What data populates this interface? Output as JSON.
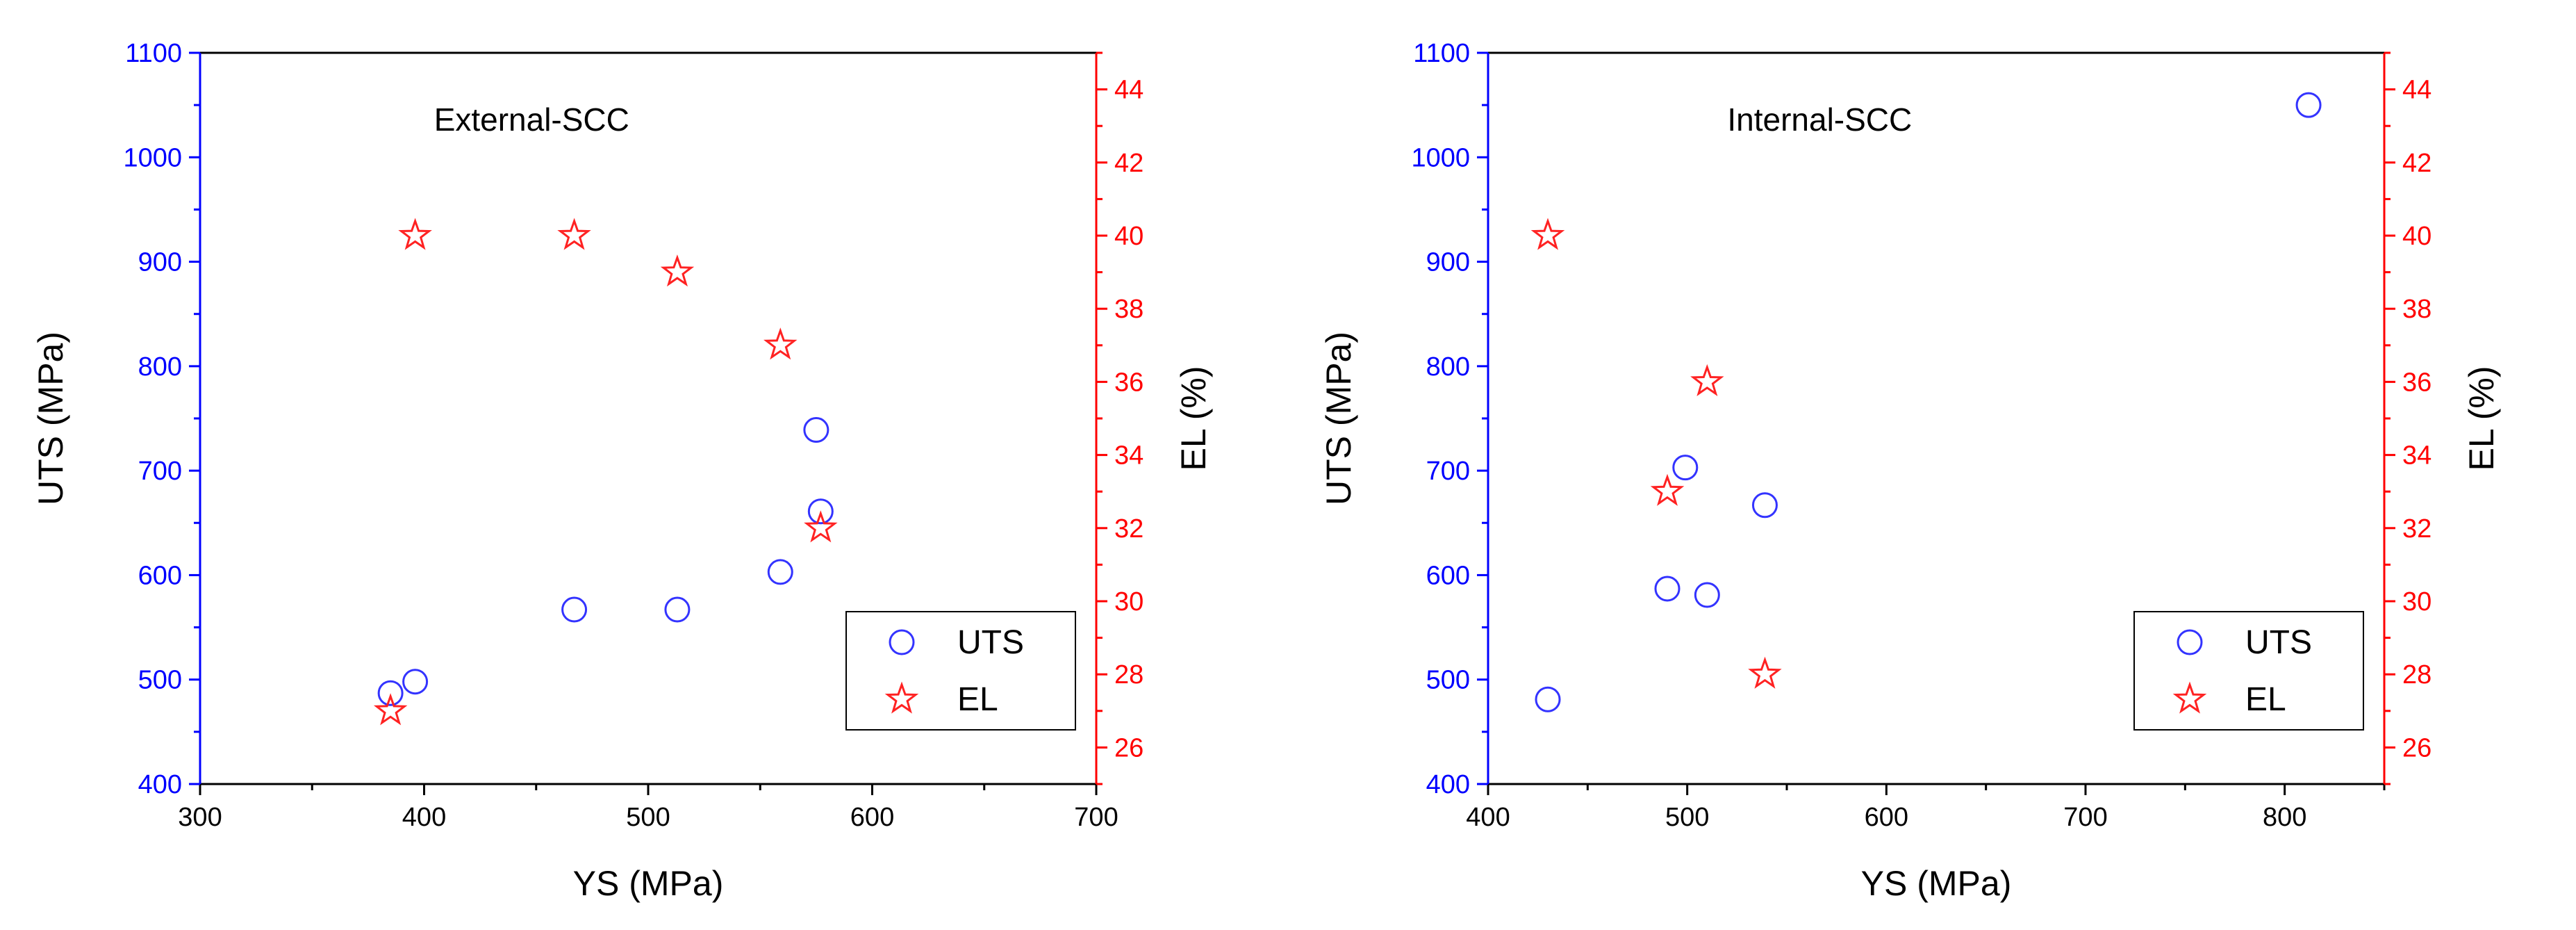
{
  "chart_data": [
    {
      "type": "scatter",
      "title": "External-SCC",
      "xlabel": "YS (MPa)",
      "ylabel_left": "UTS (MPa)",
      "ylabel_right": "EL (%)",
      "xlim": [
        300,
        700
      ],
      "ylim_left": [
        400,
        1100
      ],
      "ylim_right": [
        25,
        45
      ],
      "x_ticks": [
        "300",
        "400",
        "500",
        "600",
        "700"
      ],
      "y_left_ticks": [
        "400",
        "500",
        "600",
        "700",
        "800",
        "900",
        "1000",
        "1100"
      ],
      "y_right_ticks": [
        "26",
        "28",
        "30",
        "32",
        "34",
        "36",
        "38",
        "40",
        "42",
        "44"
      ],
      "legend_position": "bottom-right",
      "series": [
        {
          "name": "UTS",
          "axis": "left",
          "marker": "circle",
          "color": "#3333ff",
          "x": [
            385,
            396,
            467,
            513,
            559,
            575,
            577
          ],
          "y": [
            487,
            498,
            567,
            567,
            603,
            739,
            661
          ]
        },
        {
          "name": "EL",
          "axis": "right",
          "marker": "star",
          "color": "#ff2222",
          "x": [
            385,
            396,
            467,
            513,
            559,
            577
          ],
          "y": [
            27,
            40,
            40,
            39,
            37,
            32
          ]
        }
      ]
    },
    {
      "type": "scatter",
      "title": "Internal-SCC",
      "xlabel": "YS (MPa)",
      "ylabel_left": "UTS (MPa)",
      "ylabel_right": "EL (%)",
      "xlim": [
        400,
        850
      ],
      "ylim_left": [
        400,
        1100
      ],
      "ylim_right": [
        25,
        45
      ],
      "x_ticks": [
        "400",
        "500",
        "600",
        "700",
        "800"
      ],
      "y_left_ticks": [
        "400",
        "500",
        "600",
        "700",
        "800",
        "900",
        "1000",
        "1100"
      ],
      "y_right_ticks": [
        "26",
        "28",
        "30",
        "32",
        "34",
        "36",
        "38",
        "40",
        "42",
        "44"
      ],
      "legend_position": "bottom-right",
      "series": [
        {
          "name": "UTS",
          "axis": "left",
          "marker": "circle",
          "color": "#3333ff",
          "x": [
            430,
            490,
            499,
            510,
            539,
            812
          ],
          "y": [
            481,
            587,
            703,
            581,
            667,
            1050
          ]
        },
        {
          "name": "EL",
          "axis": "right",
          "marker": "star",
          "color": "#ff2222",
          "x": [
            430,
            490,
            510,
            539
          ],
          "y": [
            40,
            33,
            36,
            28
          ]
        }
      ]
    }
  ]
}
